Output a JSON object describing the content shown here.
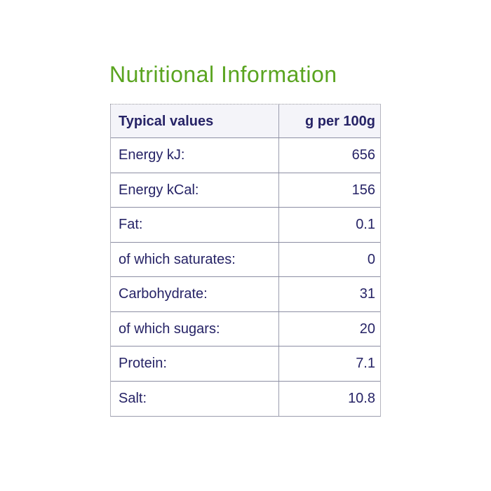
{
  "title": "Nutritional Information",
  "colors": {
    "title_green": "#5aa420",
    "text_navy": "#262366",
    "header_bg": "#f4f4f9",
    "border_outer": "#b4b5bf",
    "border_inner": "#8c8ea3"
  },
  "table": {
    "header": {
      "label": "Typical values",
      "value": "g per 100g"
    },
    "rows": [
      {
        "label": "Energy kJ:",
        "value": "656"
      },
      {
        "label": "Energy kCal:",
        "value": "156"
      },
      {
        "label": "Fat:",
        "value": "0.1"
      },
      {
        "label": "of which saturates:",
        "value": "0"
      },
      {
        "label": "Carbohydrate:",
        "value": "31"
      },
      {
        "label": "of which sugars:",
        "value": "20"
      },
      {
        "label": "Protein:",
        "value": "7.1"
      },
      {
        "label": "Salt:",
        "value": "10.8"
      }
    ]
  }
}
